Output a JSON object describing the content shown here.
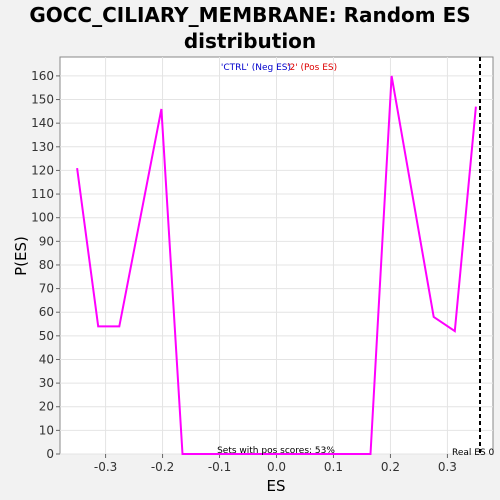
{
  "chart_data": {
    "type": "line",
    "title": "GOCC_CILIARY_MEMBRANE: Random ES distribution",
    "xlabel": "ES",
    "ylabel": "P(ES)",
    "xlim": [
      -0.38,
      0.38
    ],
    "ylim": [
      0,
      168
    ],
    "x_ticks": [
      -0.3,
      -0.2,
      -0.1,
      0.0,
      0.1,
      0.2,
      0.3
    ],
    "x_tick_labels": [
      "-0.3",
      "-0.2",
      "-0.1",
      "0.0",
      "0.1",
      "0.2",
      "0.3"
    ],
    "y_ticks": [
      0,
      10,
      20,
      30,
      40,
      50,
      60,
      70,
      80,
      90,
      100,
      110,
      120,
      130,
      140,
      150,
      160
    ],
    "grid": true,
    "series": [
      {
        "color": "#ff00ff",
        "x": [
          -0.35,
          -0.313,
          -0.276,
          -0.202,
          -0.165,
          0.165,
          0.202,
          0.276,
          0.313,
          0.35
        ],
        "values": [
          121,
          54,
          54,
          146,
          0,
          0,
          160,
          58,
          52,
          147
        ]
      }
    ],
    "legend_neg": "'CTRL' (Neg ES)",
    "legend_pos": "'2' (Pos ES)",
    "legend_neg_color": "#0000cc",
    "legend_pos_color": "#dd0000",
    "legend_placement": "top-center",
    "annotation_sets": "Sets with pos scores: 53%",
    "annotation_real": "Real ES 0",
    "real_es_line_color": "#000000"
  }
}
